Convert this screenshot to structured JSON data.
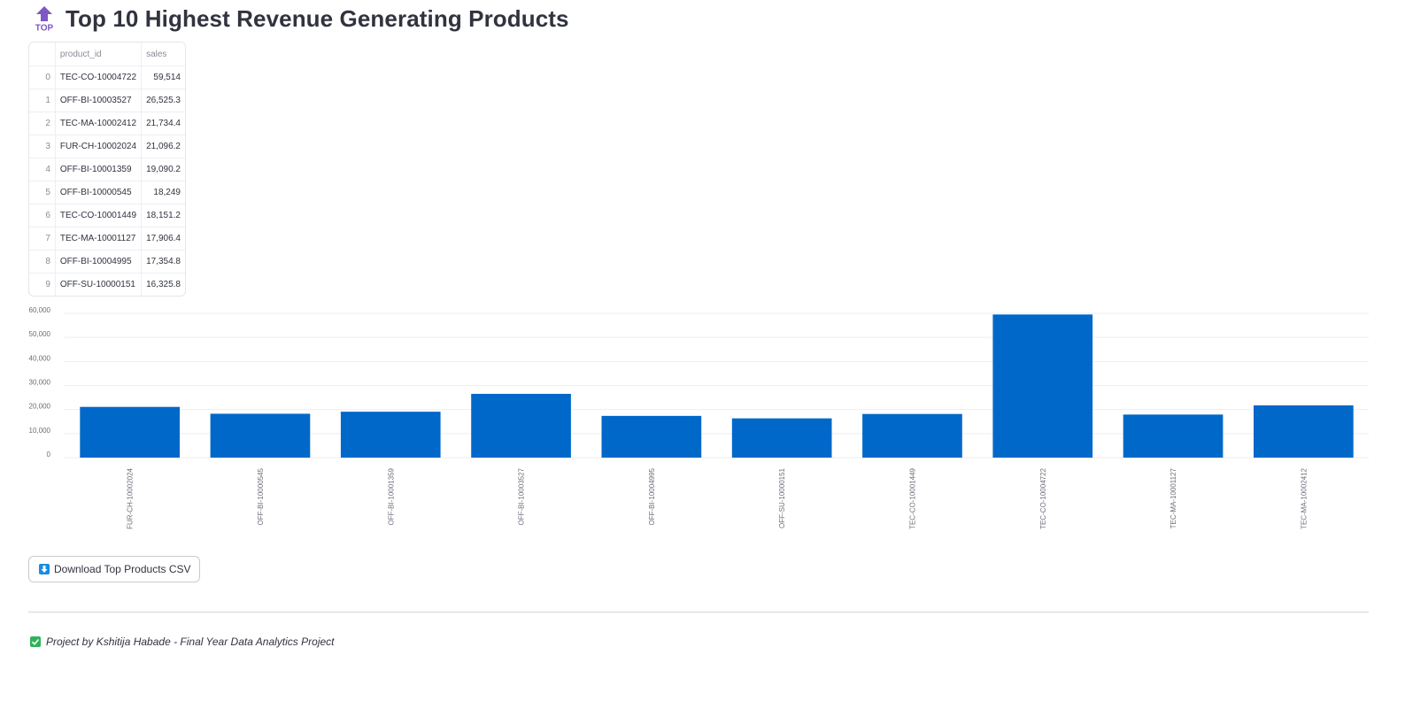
{
  "header": {
    "icon": "top-arrow-icon",
    "icon_text": "TOP",
    "title": "Top 10 Highest Revenue Generating Products"
  },
  "table": {
    "columns": [
      "",
      "product_id",
      "sales"
    ],
    "rows": [
      {
        "index": "0",
        "product_id": "TEC-CO-10004722",
        "sales": "59,514"
      },
      {
        "index": "1",
        "product_id": "OFF-BI-10003527",
        "sales": "26,525.3"
      },
      {
        "index": "2",
        "product_id": "TEC-MA-10002412",
        "sales": "21,734.4"
      },
      {
        "index": "3",
        "product_id": "FUR-CH-10002024",
        "sales": "21,096.2"
      },
      {
        "index": "4",
        "product_id": "OFF-BI-10001359",
        "sales": "19,090.2"
      },
      {
        "index": "5",
        "product_id": "OFF-BI-10000545",
        "sales": "18,249"
      },
      {
        "index": "6",
        "product_id": "TEC-CO-10001449",
        "sales": "18,151.2"
      },
      {
        "index": "7",
        "product_id": "TEC-MA-10001127",
        "sales": "17,906.4"
      },
      {
        "index": "8",
        "product_id": "OFF-BI-10004995",
        "sales": "17,354.8"
      },
      {
        "index": "9",
        "product_id": "OFF-SU-10000151",
        "sales": "16,325.8"
      }
    ]
  },
  "chart_data": {
    "type": "bar",
    "categories": [
      "FUR-CH-10002024",
      "OFF-BI-10000545",
      "OFF-BI-10001359",
      "OFF-BI-10003527",
      "OFF-BI-10004995",
      "OFF-SU-10000151",
      "TEC-CO-10001449",
      "TEC-CO-10004722",
      "TEC-MA-10001127",
      "TEC-MA-10002412"
    ],
    "values": [
      21096.2,
      18249,
      19090.2,
      26525.3,
      17354.8,
      16325.8,
      18151.2,
      59514,
      17906.4,
      21734.4
    ],
    "ylim": [
      0,
      60000
    ],
    "yticks": [
      "0",
      "10,000",
      "20,000",
      "30,000",
      "40,000",
      "50,000",
      "60,000"
    ],
    "ytick_values": [
      0,
      10000,
      20000,
      30000,
      40000,
      50000,
      60000
    ],
    "bar_color": "#0068c9",
    "grid": true,
    "title": "",
    "xlabel": "",
    "ylabel": ""
  },
  "download": {
    "icon": "download-arrow-icon",
    "label": "Download Top Products CSV"
  },
  "footer": {
    "icon": "check-mark-icon",
    "text": "Project by Kshitija Habade - Final Year Data Analytics Project"
  },
  "colors": {
    "accent": "#0068c9",
    "top_icon": "#7e57c2",
    "check": "#2fb35a",
    "download_icon": "#1a8be0"
  }
}
